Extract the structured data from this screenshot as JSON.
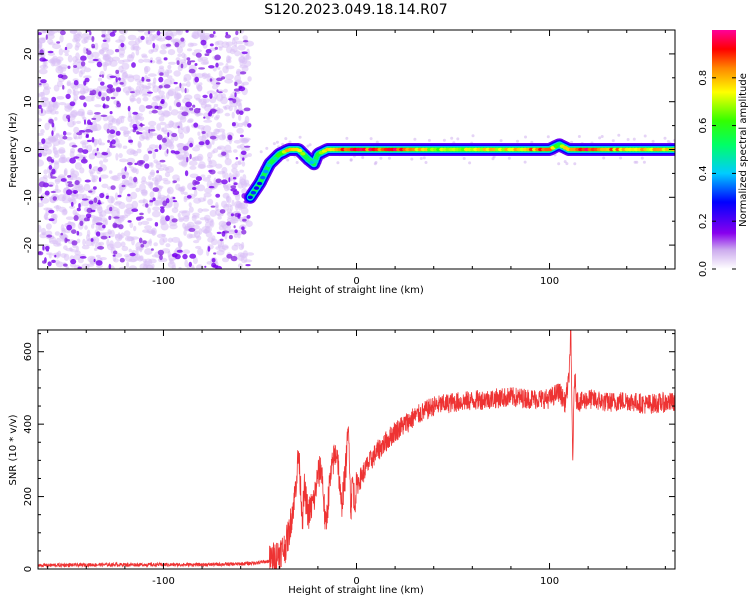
{
  "title": "S120.2023.049.18.14.R07",
  "chart_data": [
    {
      "type": "heatmap",
      "xlabel": "Height of straight line (km)",
      "ylabel": "Frequency (Hz)",
      "xlim": [
        -165,
        165
      ],
      "ylim": [
        -25,
        25
      ],
      "x_ticks": [
        -100,
        0,
        100
      ],
      "y_ticks": [
        -20,
        -10,
        0,
        10,
        20
      ],
      "noise_region_x": [
        -165,
        -55
      ],
      "ridge": {
        "x": [
          -55,
          -50,
          -45,
          -40,
          -35,
          -30,
          -25,
          -22,
          -20,
          -15,
          -10,
          0,
          20,
          40,
          60,
          80,
          100,
          105,
          110,
          120,
          140,
          165
        ],
        "y": [
          -10,
          -7,
          -3,
          -1,
          0,
          0,
          -2,
          -3,
          -1,
          0,
          0,
          0,
          0,
          0,
          0,
          0,
          0,
          1,
          0,
          0,
          0,
          0
        ],
        "amplitude": [
          0.3,
          0.3,
          0.5,
          0.6,
          0.85,
          0.9,
          0.5,
          0.4,
          0.6,
          0.85,
          0.9,
          0.95,
          0.95,
          0.7,
          0.75,
          0.8,
          0.9,
          0.6,
          0.85,
          0.95,
          0.8,
          0.8
        ]
      },
      "colorbar": {
        "label": "Normalized spectral amplitude",
        "range": [
          0,
          1
        ],
        "ticks": [
          "0.0",
          "0.2",
          "0.4",
          "0.6",
          "0.8"
        ]
      }
    },
    {
      "type": "line",
      "xlabel": "Height of straight line (km)",
      "ylabel": "SNR (10 * v/v)",
      "xlim": [
        -165,
        165
      ],
      "ylim": [
        0,
        660
      ],
      "x_ticks": [
        -100,
        0,
        100
      ],
      "y_ticks": [
        0,
        200,
        400,
        600
      ],
      "color": "#ee3333",
      "series": [
        {
          "x": [
            -165,
            -130,
            -100,
            -80,
            -60,
            -50,
            -45,
            -40,
            -37,
            -35,
            -32,
            -30,
            -28,
            -27,
            -25,
            -22,
            -20,
            -18,
            -16,
            -14,
            -12,
            -10,
            -8,
            -6,
            -4,
            -3,
            -2,
            -1,
            0,
            5,
            10,
            15,
            20,
            25,
            30,
            40,
            50,
            60,
            70,
            80,
            90,
            100,
            105,
            108,
            110,
            111,
            112,
            113,
            114,
            116,
            118,
            120,
            130,
            140,
            150,
            160,
            165
          ],
          "y": [
            10,
            12,
            12,
            12,
            14,
            18,
            22,
            45,
            60,
            100,
            200,
            320,
            140,
            220,
            150,
            190,
            260,
            280,
            110,
            230,
            300,
            330,
            170,
            250,
            400,
            160,
            250,
            180,
            230,
            280,
            320,
            350,
            380,
            400,
            420,
            450,
            460,
            465,
            470,
            475,
            470,
            470,
            490,
            460,
            520,
            660,
            300,
            540,
            470,
            460,
            465,
            470,
            460,
            465,
            455,
            460,
            460
          ]
        }
      ]
    }
  ]
}
